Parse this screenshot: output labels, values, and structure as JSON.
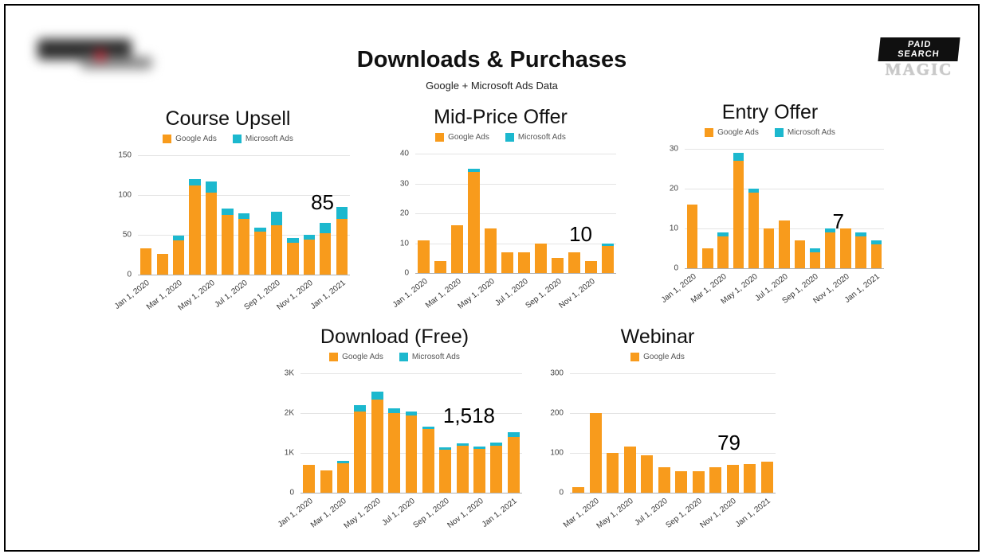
{
  "slide": {
    "title": "Downloads & Purchases",
    "subtitle": "Google + Microsoft Ads Data",
    "badge": {
      "top": "PAID SEARCH",
      "bottom": "MAGIC"
    }
  },
  "colors": {
    "google": "#F89B1C",
    "microsoft": "#1CB8CE"
  },
  "chart_data": [
    {
      "type": "bar",
      "stacked": true,
      "title": "Course Upsell",
      "annotation": "85",
      "ylim": [
        0,
        150
      ],
      "yticks": [
        0,
        50,
        100,
        150
      ],
      "ytick_labels": [
        "0",
        "50",
        "100",
        "150"
      ],
      "x": [
        "Jan 1, 2020",
        "Feb 1, 2020",
        "Mar 1, 2020",
        "Apr 1, 2020",
        "May 1, 2020",
        "Jun 1, 2020",
        "Jul 1, 2020",
        "Aug 1, 2020",
        "Sep 1, 2020",
        "Oct 1, 2020",
        "Nov 1, 2020",
        "Dec 1, 2020",
        "Jan 1, 2021"
      ],
      "xticks": [
        {
          "i": 0,
          "label": "Jan 1, 2020"
        },
        {
          "i": 2,
          "label": "Mar 1, 2020"
        },
        {
          "i": 4,
          "label": "May 1, 2020"
        },
        {
          "i": 6,
          "label": "Jul 1, 2020"
        },
        {
          "i": 8,
          "label": "Sep 1, 2020"
        },
        {
          "i": 10,
          "label": "Nov 1, 2020"
        },
        {
          "i": 12,
          "label": "Jan 1, 2021"
        }
      ],
      "series": [
        {
          "name": "Google Ads",
          "values": [
            33,
            26,
            43,
            112,
            103,
            75,
            70,
            54,
            62,
            40,
            44,
            52,
            70
          ]
        },
        {
          "name": "Microsoft Ads",
          "values": [
            0,
            0,
            6,
            8,
            14,
            8,
            7,
            5,
            17,
            6,
            6,
            13,
            15
          ]
        }
      ]
    },
    {
      "type": "bar",
      "stacked": true,
      "title": "Mid-Price Offer",
      "annotation": "10",
      "ylim": [
        0,
        40
      ],
      "yticks": [
        0,
        10,
        20,
        30,
        40
      ],
      "ytick_labels": [
        "0",
        "10",
        "20",
        "30",
        "40"
      ],
      "x": [
        "Jan 1, 2020",
        "Feb 1, 2020",
        "Mar 1, 2020",
        "Apr 1, 2020",
        "May 1, 2020",
        "Jun 1, 2020",
        "Jul 1, 2020",
        "Aug 1, 2020",
        "Sep 1, 2020",
        "Oct 1, 2020",
        "Nov 1, 2020",
        "Dec 1, 2020"
      ],
      "xticks": [
        {
          "i": 0,
          "label": "Jan 1, 2020"
        },
        {
          "i": 2,
          "label": "Mar 1, 2020"
        },
        {
          "i": 4,
          "label": "May 1, 2020"
        },
        {
          "i": 6,
          "label": "Jul 1, 2020"
        },
        {
          "i": 8,
          "label": "Sep 1, 2020"
        },
        {
          "i": 10,
          "label": "Nov 1, 2020"
        }
      ],
      "series": [
        {
          "name": "Google Ads",
          "values": [
            11,
            4,
            16,
            34,
            15,
            7,
            7,
            10,
            5,
            7,
            4,
            9
          ]
        },
        {
          "name": "Microsoft Ads",
          "values": [
            0,
            0,
            0,
            1,
            0,
            0,
            0,
            0,
            0,
            0,
            0,
            1
          ]
        }
      ]
    },
    {
      "type": "bar",
      "stacked": true,
      "title": "Entry Offer",
      "annotation": "7",
      "ylim": [
        0,
        30
      ],
      "yticks": [
        0,
        10,
        20,
        30
      ],
      "ytick_labels": [
        "0",
        "10",
        "20",
        "30"
      ],
      "x": [
        "Jan 1, 2020",
        "Feb 1, 2020",
        "Mar 1, 2020",
        "Apr 1, 2020",
        "May 1, 2020",
        "Jun 1, 2020",
        "Jul 1, 2020",
        "Aug 1, 2020",
        "Sep 1, 2020",
        "Oct 1, 2020",
        "Nov 1, 2020",
        "Dec 1, 2020",
        "Jan 1, 2021"
      ],
      "xticks": [
        {
          "i": 0,
          "label": "Jan 1, 2020"
        },
        {
          "i": 2,
          "label": "Mar 1, 2020"
        },
        {
          "i": 4,
          "label": "May 1, 2020"
        },
        {
          "i": 6,
          "label": "Jul 1, 2020"
        },
        {
          "i": 8,
          "label": "Sep 1, 2020"
        },
        {
          "i": 10,
          "label": "Nov 1, 2020"
        },
        {
          "i": 12,
          "label": "Jan 1, 2021"
        }
      ],
      "series": [
        {
          "name": "Google Ads",
          "values": [
            16,
            5,
            8,
            27,
            19,
            10,
            12,
            7,
            4,
            9,
            10,
            8,
            6
          ]
        },
        {
          "name": "Microsoft Ads",
          "values": [
            0,
            0,
            1,
            2,
            1,
            0,
            0,
            0,
            1,
            1,
            0,
            1,
            1
          ]
        }
      ]
    },
    {
      "type": "bar",
      "stacked": true,
      "title": "Download (Free)",
      "annotation": "1,518",
      "ylim": [
        0,
        3000
      ],
      "yticks": [
        0,
        1000,
        2000,
        3000
      ],
      "ytick_labels": [
        "0",
        "1K",
        "2K",
        "3K"
      ],
      "x": [
        "Jan 1, 2020",
        "Feb 1, 2020",
        "Mar 1, 2020",
        "Apr 1, 2020",
        "May 1, 2020",
        "Jun 1, 2020",
        "Jul 1, 2020",
        "Aug 1, 2020",
        "Sep 1, 2020",
        "Oct 1, 2020",
        "Nov 1, 2020",
        "Dec 1, 2020",
        "Jan 1, 2021"
      ],
      "xticks": [
        {
          "i": 0,
          "label": "Jan 1, 2020"
        },
        {
          "i": 2,
          "label": "Mar 1, 2020"
        },
        {
          "i": 4,
          "label": "May 1, 2020"
        },
        {
          "i": 6,
          "label": "Jul 1, 2020"
        },
        {
          "i": 8,
          "label": "Sep 1, 2020"
        },
        {
          "i": 10,
          "label": "Nov 1, 2020"
        },
        {
          "i": 12,
          "label": "Jan 1, 2021"
        }
      ],
      "series": [
        {
          "name": "Google Ads",
          "values": [
            700,
            560,
            750,
            2050,
            2350,
            2000,
            1950,
            1600,
            1080,
            1180,
            1100,
            1180,
            1400
          ]
        },
        {
          "name": "Microsoft Ads",
          "values": [
            0,
            0,
            60,
            150,
            200,
            120,
            100,
            60,
            60,
            60,
            60,
            90,
            118
          ]
        }
      ]
    },
    {
      "type": "bar",
      "stacked": true,
      "title": "Webinar",
      "annotation": "79",
      "ylim": [
        0,
        300
      ],
      "yticks": [
        0,
        100,
        200,
        300
      ],
      "ytick_labels": [
        "0",
        "100",
        "200",
        "300"
      ],
      "x": [
        "Feb 1, 2020",
        "Mar 1, 2020",
        "Apr 1, 2020",
        "May 1, 2020",
        "Jun 1, 2020",
        "Jul 1, 2020",
        "Aug 1, 2020",
        "Sep 1, 2020",
        "Oct 1, 2020",
        "Nov 1, 2020",
        "Dec 1, 2020",
        "Jan 1, 2021"
      ],
      "xticks": [
        {
          "i": 1,
          "label": "Mar 1, 2020"
        },
        {
          "i": 3,
          "label": "May 1, 2020"
        },
        {
          "i": 5,
          "label": "Jul 1, 2020"
        },
        {
          "i": 7,
          "label": "Sep 1, 2020"
        },
        {
          "i": 9,
          "label": "Nov 1, 2020"
        },
        {
          "i": 11,
          "label": "Jan 1, 2021"
        }
      ],
      "series": [
        {
          "name": "Google Ads",
          "values": [
            15,
            200,
            100,
            117,
            95,
            65,
            55,
            55,
            65,
            70,
            72,
            79
          ]
        }
      ]
    }
  ]
}
